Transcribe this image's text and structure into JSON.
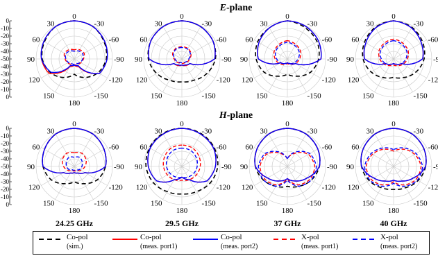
{
  "figure": {
    "row_titles": [
      {
        "bold": "E",
        "rest": "-plane"
      },
      {
        "bold": "H",
        "rest": "-plane"
      }
    ],
    "frequencies": [
      "24.25 GHz",
      "29.5 GHz",
      "37 GHz",
      "40 GHz"
    ],
    "angle_labels": {
      "top": "0",
      "tl": "30",
      "tr": "-30",
      "ul": "60",
      "ur": "-60",
      "l": "90",
      "r": "-90",
      "ll": "120",
      "lr": "-120",
      "bl": "150",
      "br": "-150",
      "bottom": "180"
    },
    "radial_ticks": [
      "0",
      "-10",
      "-20",
      "-30",
      "-40",
      "-50",
      "-40",
      "-30",
      "-20",
      "-10",
      "0"
    ]
  },
  "legend": {
    "items": [
      {
        "name": "Co-pol",
        "sub": "(sim.)",
        "color": "#000000",
        "dash": true
      },
      {
        "name": "Co-pol",
        "sub": "(meas. port1)",
        "color": "#ff0000",
        "dash": false
      },
      {
        "name": "Co-pol",
        "sub": "(meas. port2)",
        "color": "#0000ff",
        "dash": false
      },
      {
        "name": "X-pol",
        "sub": "(meas. port1)",
        "color": "#ff0000",
        "dash": true
      },
      {
        "name": "X-pol",
        "sub": "(meas. port2)",
        "color": "#0000ff",
        "dash": true
      }
    ]
  },
  "chart_data": {
    "type": "polar",
    "r_range": [
      -50,
      0
    ],
    "r_unit": "dB",
    "angles_deg": [
      0,
      30,
      60,
      90,
      120,
      150,
      180,
      -150,
      -120,
      -90,
      -60,
      -30
    ],
    "panels": [
      {
        "plane": "E-plane",
        "frequency": "24.25 GHz",
        "co_sim": [
          0,
          -1,
          -5,
          -8,
          -14,
          -22,
          -30,
          -22,
          -14,
          -8,
          -5,
          -1
        ],
        "co_port1": [
          0,
          -1,
          -4,
          -7,
          -12,
          -38,
          -42,
          -38,
          -12,
          -7,
          -4,
          -1
        ],
        "co_port2": [
          0,
          -1,
          -4,
          -7,
          -15,
          -40,
          -42,
          -40,
          -12,
          -7,
          -4,
          -1
        ],
        "x_port1": [
          -38,
          -36,
          -35,
          -38,
          -40,
          -42,
          -42,
          -42,
          -40,
          -38,
          -35,
          -36
        ],
        "x_port2": [
          -40,
          -38,
          -37,
          -39,
          -41,
          -43,
          -43,
          -43,
          -41,
          -39,
          -37,
          -38
        ]
      },
      {
        "plane": "E-plane",
        "frequency": "29.5 GHz",
        "co_sim": [
          0,
          -1,
          -3,
          -6,
          -12,
          -18,
          -20,
          -18,
          -12,
          -6,
          -3,
          -1
        ],
        "co_port1": [
          0,
          -1,
          -3,
          -7,
          -38,
          -40,
          -42,
          -40,
          -38,
          -7,
          -3,
          -1
        ],
        "co_port2": [
          0,
          -1,
          -3,
          -7,
          -38,
          -41,
          -42,
          -41,
          -38,
          -7,
          -3,
          -1
        ],
        "x_port1": [
          -34,
          -34,
          -36,
          -40,
          -42,
          -44,
          -44,
          -44,
          -42,
          -40,
          -36,
          -34
        ],
        "x_port2": [
          -35,
          -35,
          -37,
          -41,
          -43,
          -45,
          -45,
          -45,
          -43,
          -41,
          -37,
          -35
        ]
      },
      {
        "plane": "E-plane",
        "frequency": "37 GHz",
        "co_sim": [
          0,
          -3,
          -5,
          -9,
          -15,
          -24,
          -30,
          -24,
          -15,
          -9,
          -5,
          -3
        ],
        "co_port1": [
          0,
          -3,
          -7,
          -12,
          -40,
          -43,
          -45,
          -43,
          -38,
          -6,
          -3,
          -1
        ],
        "co_port2": [
          0,
          -3,
          -7,
          -12,
          -40,
          -43,
          -45,
          -43,
          -38,
          -6,
          -3,
          -1
        ],
        "x_port1": [
          -26,
          -28,
          -30,
          -34,
          -38,
          -42,
          -44,
          -42,
          -38,
          -34,
          -30,
          -28
        ],
        "x_port2": [
          -28,
          -30,
          -32,
          -36,
          -40,
          -43,
          -45,
          -43,
          -40,
          -36,
          -32,
          -30
        ]
      },
      {
        "plane": "E-plane",
        "frequency": "40 GHz",
        "co_sim": [
          0,
          -2,
          -6,
          -10,
          -16,
          -22,
          -26,
          -22,
          -16,
          -10,
          -6,
          -2
        ],
        "co_port1": [
          0,
          -3,
          -8,
          -12,
          -38,
          -42,
          -44,
          -42,
          -38,
          -12,
          -8,
          -3
        ],
        "co_port2": [
          0,
          -3,
          -8,
          -12,
          -38,
          -42,
          -44,
          -42,
          -38,
          -12,
          -8,
          -3
        ],
        "x_port1": [
          -24,
          -26,
          -28,
          -32,
          -36,
          -40,
          -42,
          -40,
          -36,
          -32,
          -28,
          -26
        ],
        "x_port2": [
          -26,
          -28,
          -30,
          -34,
          -38,
          -42,
          -44,
          -42,
          -38,
          -34,
          -30,
          -28
        ]
      },
      {
        "plane": "H-plane",
        "frequency": "24.25 GHz",
        "co_sim": [
          0,
          -1,
          -5,
          -9,
          -15,
          -24,
          -30,
          -24,
          -15,
          -9,
          -5,
          -1
        ],
        "co_port1": [
          0,
          -1,
          -5,
          -9,
          -34,
          -40,
          -42,
          -40,
          -34,
          -9,
          -5,
          -1
        ],
        "co_port2": [
          0,
          -1,
          -5,
          -9,
          -34,
          -40,
          -42,
          -40,
          -34,
          -9,
          -5,
          -1
        ],
        "x_port1": [
          -32,
          -30,
          -32,
          -36,
          -40,
          -44,
          -44,
          -44,
          -40,
          -36,
          -32,
          -30
        ],
        "x_port2": [
          -38,
          -36,
          -38,
          -40,
          -42,
          -45,
          -45,
          -45,
          -42,
          -40,
          -38,
          -36
        ]
      },
      {
        "plane": "H-plane",
        "frequency": "29.5 GHz",
        "co_sim": [
          0,
          0,
          -1,
          -3,
          -7,
          -12,
          -14,
          -12,
          -7,
          -3,
          -1,
          0
        ],
        "co_port1": [
          0,
          -1,
          -2,
          -6,
          -12,
          -30,
          -36,
          -30,
          -12,
          -6,
          -2,
          -1
        ],
        "co_port2": [
          0,
          -1,
          -2,
          -6,
          -12,
          -30,
          -36,
          -30,
          -12,
          -6,
          -2,
          -1
        ],
        "x_port1": [
          -22,
          -22,
          -24,
          -26,
          -28,
          -30,
          -32,
          -30,
          -28,
          -26,
          -24,
          -22
        ],
        "x_port2": [
          -26,
          -26,
          -28,
          -30,
          -32,
          -34,
          -36,
          -34,
          -32,
          -30,
          -28,
          -26
        ]
      },
      {
        "plane": "H-plane",
        "frequency": "37 GHz",
        "co_sim": [
          0,
          -1,
          -4,
          -8,
          -14,
          -20,
          -24,
          -20,
          -14,
          -8,
          -4,
          -1
        ],
        "co_port1": [
          0,
          -1,
          -4,
          -8,
          -20,
          -28,
          -34,
          -28,
          -20,
          -8,
          -4,
          -1
        ],
        "co_port2": [
          0,
          -1,
          -4,
          -8,
          -20,
          -28,
          -34,
          -28,
          -20,
          -8,
          -4,
          -1
        ],
        "x_port1": [
          -40,
          -30,
          -18,
          -14,
          -16,
          -22,
          -34,
          -22,
          -16,
          -14,
          -18,
          -30
        ],
        "x_port2": [
          -40,
          -28,
          -16,
          -12,
          -14,
          -20,
          -32,
          -20,
          -14,
          -12,
          -16,
          -28
        ]
      },
      {
        "plane": "H-plane",
        "frequency": "40 GHz",
        "co_sim": [
          0,
          -1,
          -4,
          -8,
          -13,
          -18,
          -20,
          -18,
          -13,
          -8,
          -4,
          -1
        ],
        "co_port1": [
          0,
          -1,
          -4,
          -8,
          -20,
          -28,
          -32,
          -28,
          -20,
          -8,
          -4,
          -1
        ],
        "co_port2": [
          0,
          -1,
          -4,
          -8,
          -20,
          -28,
          -32,
          -28,
          -20,
          -8,
          -4,
          -1
        ],
        "x_port1": [
          -30,
          -24,
          -18,
          -14,
          -16,
          -22,
          -30,
          -22,
          -16,
          -14,
          -18,
          -24
        ],
        "x_port2": [
          -28,
          -22,
          -16,
          -12,
          -14,
          -20,
          -28,
          -20,
          -14,
          -12,
          -16,
          -22
        ]
      }
    ]
  }
}
